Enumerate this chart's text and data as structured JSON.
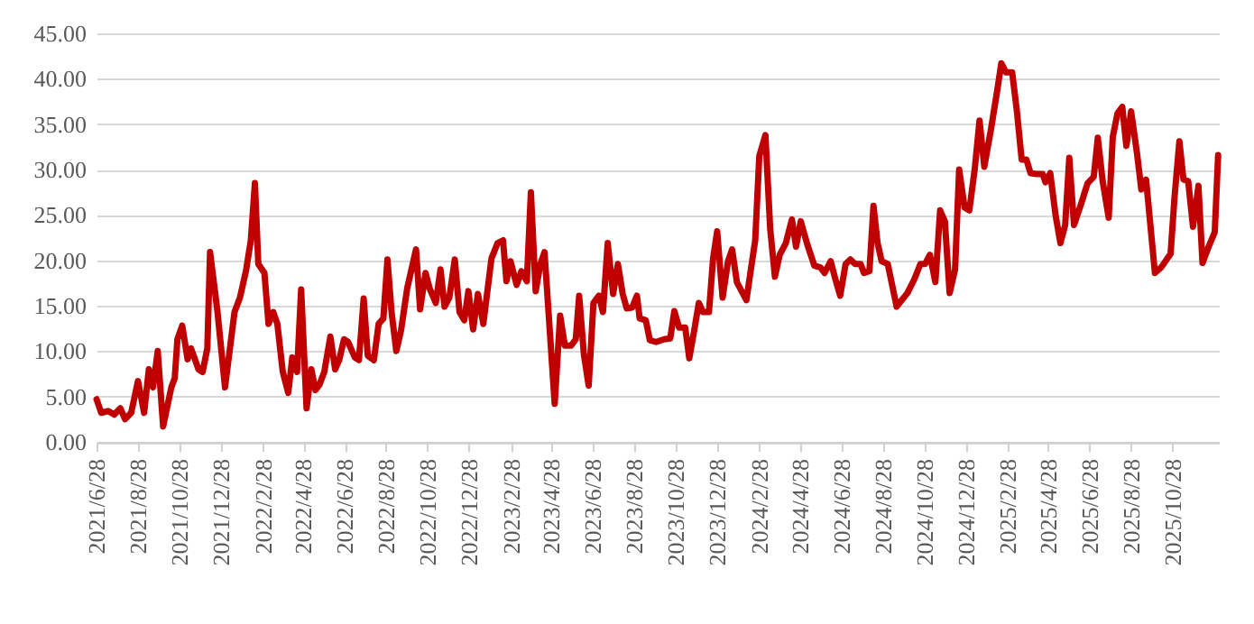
{
  "chart_data": {
    "type": "line",
    "grid": "y",
    "marker": "none",
    "line_style": "solid",
    "xlim": [
      "2021-06-28",
      "2026-01-04"
    ],
    "xticks": [
      {
        "value": "2021-06-28",
        "label": "2021/6/28"
      },
      {
        "value": "2021-08-28",
        "label": "2021/8/28"
      },
      {
        "value": "2021-10-28",
        "label": "2021/10/28"
      },
      {
        "value": "2021-12-28",
        "label": "2021/12/28"
      },
      {
        "value": "2022-02-28",
        "label": "2022/2/28"
      },
      {
        "value": "2022-04-28",
        "label": "2022/4/28"
      },
      {
        "value": "2022-06-28",
        "label": "2022/6/28"
      },
      {
        "value": "2022-08-28",
        "label": "2022/8/28"
      },
      {
        "value": "2022-10-28",
        "label": "2022/10/28"
      },
      {
        "value": "2022-12-28",
        "label": "2022/12/28"
      },
      {
        "value": "2023-02-28",
        "label": "2023/2/28"
      },
      {
        "value": "2023-04-28",
        "label": "2023/4/28"
      },
      {
        "value": "2023-06-28",
        "label": "2023/6/28"
      },
      {
        "value": "2023-08-28",
        "label": "2023/8/28"
      },
      {
        "value": "2023-10-28",
        "label": "2023/10/28"
      },
      {
        "value": "2023-12-28",
        "label": "2023/12/28"
      },
      {
        "value": "2024-02-28",
        "label": "2024/2/28"
      },
      {
        "value": "2024-04-28",
        "label": "2024/4/28"
      },
      {
        "value": "2024-06-28",
        "label": "2024/6/28"
      },
      {
        "value": "2024-08-28",
        "label": "2024/8/28"
      },
      {
        "value": "2024-10-28",
        "label": "2024/10/28"
      },
      {
        "value": "2024-12-28",
        "label": "2024/12/28"
      },
      {
        "value": "2025-02-28",
        "label": "2025/2/28"
      },
      {
        "value": "2025-04-28",
        "label": "2025/4/28"
      },
      {
        "value": "2025-06-28",
        "label": "2025/6/28"
      },
      {
        "value": "2025-08-28",
        "label": "2025/8/28"
      },
      {
        "value": "2025-10-28",
        "label": "2025/10/28"
      }
    ],
    "ylim": [
      0,
      45
    ],
    "yticks": [
      {
        "value": 0,
        "label": "0.00"
      },
      {
        "value": 5,
        "label": "5.00"
      },
      {
        "value": 10,
        "label": "10.00"
      },
      {
        "value": 15,
        "label": "15.00"
      },
      {
        "value": 20,
        "label": "20.00"
      },
      {
        "value": 25,
        "label": "25.00"
      },
      {
        "value": 30,
        "label": "30.00"
      },
      {
        "value": 35,
        "label": "35.00"
      },
      {
        "value": 40,
        "label": "40.00"
      },
      {
        "value": 45,
        "label": "45.00"
      }
    ],
    "x": [
      "2021-06-28",
      "2021-07-05",
      "2021-07-15",
      "2021-07-24",
      "2021-08-02",
      "2021-08-09",
      "2021-08-18",
      "2021-08-28",
      "2021-09-06",
      "2021-09-13",
      "2021-09-19",
      "2021-09-26",
      "2021-10-04",
      "2021-10-16",
      "2021-10-21",
      "2021-10-25",
      "2021-11-01",
      "2021-11-09",
      "2021-11-14",
      "2021-11-25",
      "2021-12-01",
      "2021-12-08",
      "2021-12-12",
      "2021-12-23",
      "2022-01-03",
      "2022-01-17",
      "2022-01-25",
      "2022-02-03",
      "2022-02-10",
      "2022-02-16",
      "2022-02-21",
      "2022-03-02",
      "2022-03-08",
      "2022-03-15",
      "2022-03-21",
      "2022-03-29",
      "2022-04-06",
      "2022-04-12",
      "2022-04-19",
      "2022-04-25",
      "2022-05-03",
      "2022-05-10",
      "2022-05-16",
      "2022-05-22",
      "2022-05-29",
      "2022-06-07",
      "2022-06-14",
      "2022-06-20",
      "2022-06-27",
      "2022-07-03",
      "2022-07-13",
      "2022-07-19",
      "2022-07-26",
      "2022-08-01",
      "2022-08-10",
      "2022-08-17",
      "2022-08-24",
      "2022-08-30",
      "2022-09-05",
      "2022-09-12",
      "2022-09-19",
      "2022-09-28",
      "2022-10-11",
      "2022-10-17",
      "2022-10-25",
      "2022-10-31",
      "2022-11-09",
      "2022-11-16",
      "2022-11-22",
      "2022-11-29",
      "2022-12-07",
      "2022-12-14",
      "2022-12-21",
      "2022-12-27",
      "2023-01-03",
      "2023-01-10",
      "2023-01-18",
      "2023-01-30",
      "2023-02-08",
      "2023-02-16",
      "2023-02-21",
      "2023-02-27",
      "2023-03-08",
      "2023-03-15",
      "2023-03-23",
      "2023-03-29",
      "2023-04-05",
      "2023-04-12",
      "2023-04-18",
      "2023-05-03",
      "2023-05-11",
      "2023-05-18",
      "2023-05-27",
      "2023-06-03",
      "2023-06-08",
      "2023-06-15",
      "2023-06-22",
      "2023-06-29",
      "2023-07-07",
      "2023-07-13",
      "2023-07-20",
      "2023-07-28",
      "2023-08-04",
      "2023-08-11",
      "2023-08-17",
      "2023-08-25",
      "2023-09-01",
      "2023-09-05",
      "2023-09-14",
      "2023-09-20",
      "2023-09-29",
      "2023-10-11",
      "2023-10-20",
      "2023-10-26",
      "2023-11-02",
      "2023-11-11",
      "2023-11-17",
      "2023-11-25",
      "2023-12-01",
      "2023-12-07",
      "2023-12-16",
      "2023-12-22",
      "2023-12-28",
      "2024-01-05",
      "2024-01-13",
      "2024-01-19",
      "2024-01-26",
      "2024-02-02",
      "2024-02-09",
      "2024-02-16",
      "2024-02-22",
      "2024-02-28",
      "2024-03-08",
      "2024-03-15",
      "2024-03-22",
      "2024-03-29",
      "2024-04-07",
      "2024-04-16",
      "2024-04-22",
      "2024-04-29",
      "2024-05-08",
      "2024-05-19",
      "2024-05-28",
      "2024-06-03",
      "2024-06-12",
      "2024-06-19",
      "2024-06-26",
      "2024-07-04",
      "2024-07-11",
      "2024-07-18",
      "2024-07-26",
      "2024-07-31",
      "2024-08-08",
      "2024-08-14",
      "2024-08-20",
      "2024-08-26",
      "2024-09-04",
      "2024-09-17",
      "2024-10-03",
      "2024-10-13",
      "2024-10-22",
      "2024-10-29",
      "2024-11-05",
      "2024-11-13",
      "2024-11-20",
      "2024-11-27",
      "2024-12-04",
      "2024-12-12",
      "2024-12-18",
      "2024-12-26",
      "2025-01-02",
      "2025-01-10",
      "2025-01-17",
      "2025-01-24",
      "2025-02-03",
      "2025-02-12",
      "2025-02-18",
      "2025-02-25",
      "2025-03-06",
      "2025-03-13",
      "2025-03-20",
      "2025-03-27",
      "2025-04-02",
      "2025-04-11",
      "2025-04-20",
      "2025-04-24",
      "2025-05-01",
      "2025-05-09",
      "2025-05-16",
      "2025-05-23",
      "2025-05-29",
      "2025-06-05",
      "2025-06-14",
      "2025-06-25",
      "2025-07-04",
      "2025-07-10",
      "2025-07-17",
      "2025-07-26",
      "2025-08-01",
      "2025-08-08",
      "2025-08-15",
      "2025-08-21",
      "2025-08-28",
      "2025-09-06",
      "2025-09-12",
      "2025-09-19",
      "2025-10-02",
      "2025-10-11",
      "2025-10-25",
      "2025-10-31",
      "2025-11-07",
      "2025-11-13",
      "2025-11-20",
      "2025-11-27",
      "2025-12-05",
      "2025-12-11",
      "2025-12-20",
      "2025-12-29",
      "2026-01-03"
    ],
    "series": [
      {
        "color": "#c00000",
        "values": [
          4.7,
          3.2,
          3.4,
          3.0,
          3.7,
          2.5,
          3.2,
          6.7,
          3.2,
          8.0,
          6.0,
          10.0,
          1.7,
          6.0,
          7.0,
          11.3,
          12.8,
          9.1,
          10.3,
          8.0,
          7.7,
          10.3,
          20.9,
          14.3,
          6.0,
          14.3,
          15.9,
          18.9,
          22.2,
          28.5,
          19.6,
          18.6,
          13.0,
          14.3,
          13.0,
          7.7,
          5.4,
          9.3,
          7.7,
          16.8,
          3.7,
          8.0,
          5.7,
          6.3,
          7.7,
          11.6,
          8.0,
          9.0,
          11.3,
          11.0,
          9.3,
          9.0,
          15.8,
          9.5,
          9.0,
          13.0,
          13.6,
          20.1,
          14.3,
          10.0,
          12.3,
          16.9,
          21.2,
          14.6,
          18.6,
          16.9,
          15.3,
          19.0,
          14.9,
          15.9,
          20.1,
          14.3,
          13.4,
          16.6,
          12.4,
          16.3,
          13.0,
          20.2,
          21.9,
          22.2,
          17.7,
          19.9,
          17.3,
          18.8,
          17.7,
          27.5,
          16.6,
          19.6,
          20.9,
          4.2,
          13.9,
          10.6,
          10.6,
          11.3,
          16.1,
          9.6,
          6.2,
          15.3,
          16.1,
          14.3,
          21.9,
          16.3,
          19.6,
          16.3,
          14.7,
          14.8,
          16.1,
          13.6,
          13.4,
          11.2,
          11.0,
          11.3,
          11.4,
          14.4,
          12.6,
          12.6,
          9.2,
          12.6,
          15.3,
          14.3,
          14.3,
          20.2,
          23.2,
          15.9,
          19.9,
          21.2,
          17.6,
          16.6,
          15.6,
          19.2,
          22.2,
          31.5,
          33.8,
          23.5,
          18.2,
          20.6,
          21.9,
          24.5,
          21.5,
          24.3,
          21.9,
          19.4,
          19.2,
          18.6,
          19.9,
          17.9,
          16.1,
          19.6,
          20.1,
          19.6,
          19.6,
          18.6,
          18.8,
          26.0,
          21.9,
          19.9,
          19.6,
          14.9,
          16.4,
          17.9,
          19.6,
          19.6,
          20.6,
          17.6,
          25.5,
          24.3,
          16.4,
          19.0,
          30.0,
          25.8,
          25.5,
          30.1,
          35.4,
          30.3,
          34.5,
          38.7,
          41.7,
          40.7,
          40.7,
          36.4,
          31.1,
          31.1,
          29.6,
          29.5,
          29.5,
          28.6,
          29.6,
          24.9,
          21.9,
          23.9,
          31.3,
          23.9,
          25.9,
          28.5,
          29.2,
          33.5,
          28.8,
          24.7,
          33.6,
          36.2,
          36.9,
          32.6,
          36.4,
          31.6,
          27.8,
          28.9,
          18.6,
          19.2,
          20.7,
          27.1,
          33.1,
          28.9,
          28.7,
          23.7,
          28.2,
          19.7,
          21.5,
          23.1,
          31.6
        ]
      }
    ]
  }
}
